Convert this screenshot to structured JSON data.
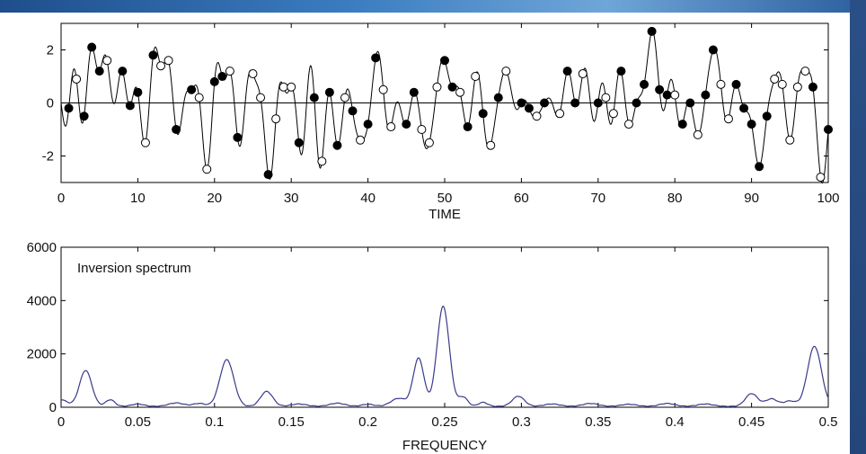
{
  "chart_data": [
    {
      "type": "line",
      "title": "",
      "xlabel": "TIME",
      "ylabel": "",
      "xlim": [
        0,
        100
      ],
      "ylim": [
        -3,
        3
      ],
      "xticks": [
        "0",
        "10",
        "20",
        "30",
        "40",
        "50",
        "60",
        "70",
        "80",
        "90",
        "100"
      ],
      "yticks": [
        "2",
        "0",
        "-2"
      ],
      "zero_line": true,
      "series": [
        {
          "marker": "filled-circle",
          "x": [
            1,
            3,
            4,
            5,
            8,
            9,
            10,
            12,
            15,
            17,
            20,
            21,
            23,
            27,
            31,
            33,
            35,
            36,
            38,
            40,
            41,
            45,
            46,
            50,
            51,
            53,
            55,
            57,
            60,
            61,
            63,
            66,
            67,
            70,
            73,
            75,
            76,
            77,
            78,
            79,
            81,
            82,
            84,
            85,
            88,
            89,
            90,
            91,
            92,
            98,
            100
          ],
          "y": [
            -0.2,
            -0.5,
            2.1,
            1.2,
            1.2,
            -0.1,
            0.4,
            1.8,
            -1.0,
            0.5,
            0.8,
            1.0,
            -1.3,
            -2.7,
            -1.5,
            0.2,
            0.4,
            -1.6,
            -0.3,
            -0.8,
            1.7,
            -0.8,
            0.4,
            1.6,
            0.6,
            -0.9,
            -0.4,
            0.2,
            0.0,
            -0.2,
            0.0,
            1.2,
            0.0,
            0.0,
            1.2,
            0.0,
            0.7,
            2.7,
            0.5,
            0.3,
            -0.8,
            0.0,
            0.3,
            2.0,
            0.7,
            -0.2,
            -0.8,
            -2.4,
            -0.5,
            0.6,
            -1.0
          ]
        },
        {
          "marker": "open-circle",
          "x": [
            2,
            6,
            11,
            13,
            14,
            18,
            19,
            22,
            25,
            26,
            28,
            29,
            30,
            34,
            37,
            39,
            42,
            43,
            47,
            48,
            49,
            52,
            54,
            56,
            58,
            62,
            65,
            68,
            71,
            72,
            74,
            80,
            83,
            86,
            87,
            93,
            94,
            95,
            96,
            97,
            99
          ],
          "y": [
            0.9,
            1.6,
            -1.5,
            1.4,
            1.6,
            0.2,
            -2.5,
            1.2,
            1.1,
            0.2,
            -0.6,
            0.6,
            0.6,
            -2.2,
            0.2,
            -1.4,
            0.5,
            -0.9,
            -1.0,
            -1.5,
            0.6,
            0.4,
            1.0,
            -1.6,
            1.2,
            -0.5,
            -0.4,
            1.1,
            0.2,
            -0.4,
            -0.8,
            0.3,
            -1.2,
            0.7,
            -0.6,
            0.9,
            0.7,
            -1.4,
            0.6,
            1.2,
            -2.8
          ]
        }
      ]
    },
    {
      "type": "line",
      "title": "",
      "xlabel": "FREQUENCY",
      "ylabel": "",
      "xlim": [
        0,
        0.5
      ],
      "ylim": [
        0,
        6000
      ],
      "xticks": [
        "0",
        "0.05",
        "0.1",
        "0.15",
        "0.2",
        "0.25",
        "0.3",
        "0.35",
        "0.4",
        "0.45",
        "0.5"
      ],
      "yticks": [
        "6000",
        "4000",
        "2000",
        "0"
      ],
      "annotation": "Inversion spectrum",
      "line_color": "#3a3a8c",
      "peaks": [
        {
          "f": 0.0,
          "v": 250,
          "w": 0.004
        },
        {
          "f": 0.016,
          "v": 1350,
          "w": 0.004
        },
        {
          "f": 0.032,
          "v": 250,
          "w": 0.003
        },
        {
          "f": 0.05,
          "v": 90,
          "w": 0.004
        },
        {
          "f": 0.075,
          "v": 130,
          "w": 0.005
        },
        {
          "f": 0.09,
          "v": 110,
          "w": 0.004
        },
        {
          "f": 0.108,
          "v": 1750,
          "w": 0.0045
        },
        {
          "f": 0.134,
          "v": 560,
          "w": 0.004
        },
        {
          "f": 0.155,
          "v": 90,
          "w": 0.005
        },
        {
          "f": 0.18,
          "v": 120,
          "w": 0.005
        },
        {
          "f": 0.2,
          "v": 80,
          "w": 0.004
        },
        {
          "f": 0.22,
          "v": 300,
          "w": 0.005
        },
        {
          "f": 0.233,
          "v": 1800,
          "w": 0.0035
        },
        {
          "f": 0.249,
          "v": 3750,
          "w": 0.004
        },
        {
          "f": 0.262,
          "v": 350,
          "w": 0.003
        },
        {
          "f": 0.275,
          "v": 150,
          "w": 0.003
        },
        {
          "f": 0.298,
          "v": 380,
          "w": 0.004
        },
        {
          "f": 0.32,
          "v": 90,
          "w": 0.005
        },
        {
          "f": 0.345,
          "v": 110,
          "w": 0.005
        },
        {
          "f": 0.37,
          "v": 80,
          "w": 0.005
        },
        {
          "f": 0.395,
          "v": 110,
          "w": 0.005
        },
        {
          "f": 0.42,
          "v": 90,
          "w": 0.005
        },
        {
          "f": 0.45,
          "v": 480,
          "w": 0.004
        },
        {
          "f": 0.463,
          "v": 280,
          "w": 0.004
        },
        {
          "f": 0.475,
          "v": 200,
          "w": 0.004
        },
        {
          "f": 0.491,
          "v": 2250,
          "w": 0.0045
        }
      ]
    }
  ]
}
